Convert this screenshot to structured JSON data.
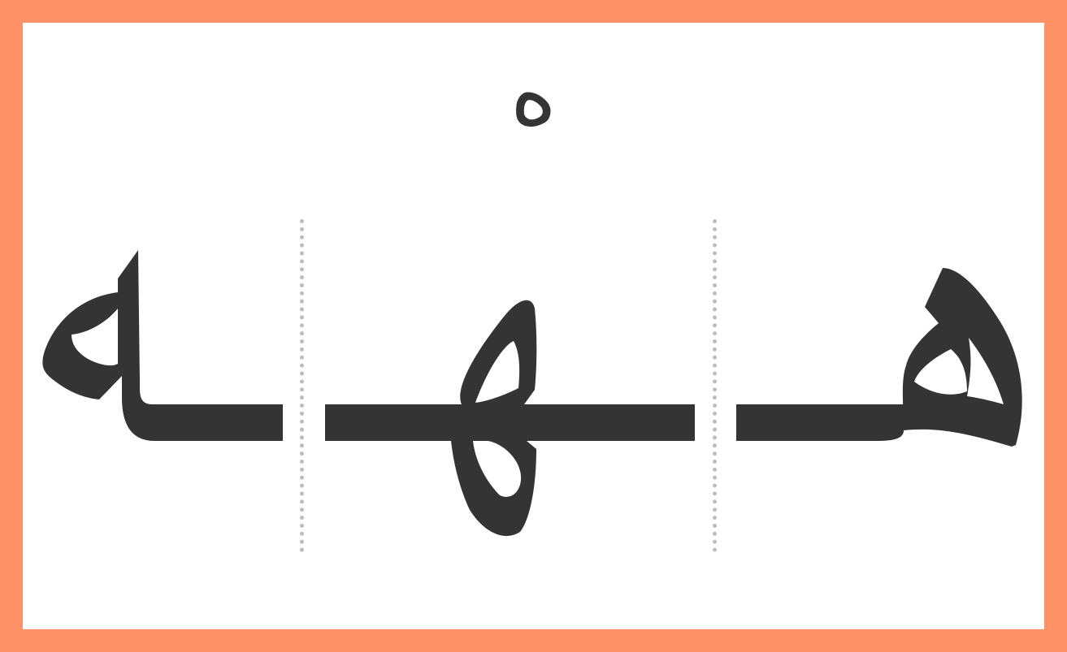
{
  "letter": {
    "isolated": "ه"
  },
  "forms": [
    {
      "position": "final",
      "glyph": "ـه"
    },
    {
      "position": "medial",
      "glyph": "ـهـ"
    },
    {
      "position": "initial",
      "glyph": "هـ"
    }
  ],
  "colors": {
    "frame": "#FF9166",
    "ink": "#343434",
    "background": "#FFFFFF",
    "divider": "#BDBDBD"
  }
}
